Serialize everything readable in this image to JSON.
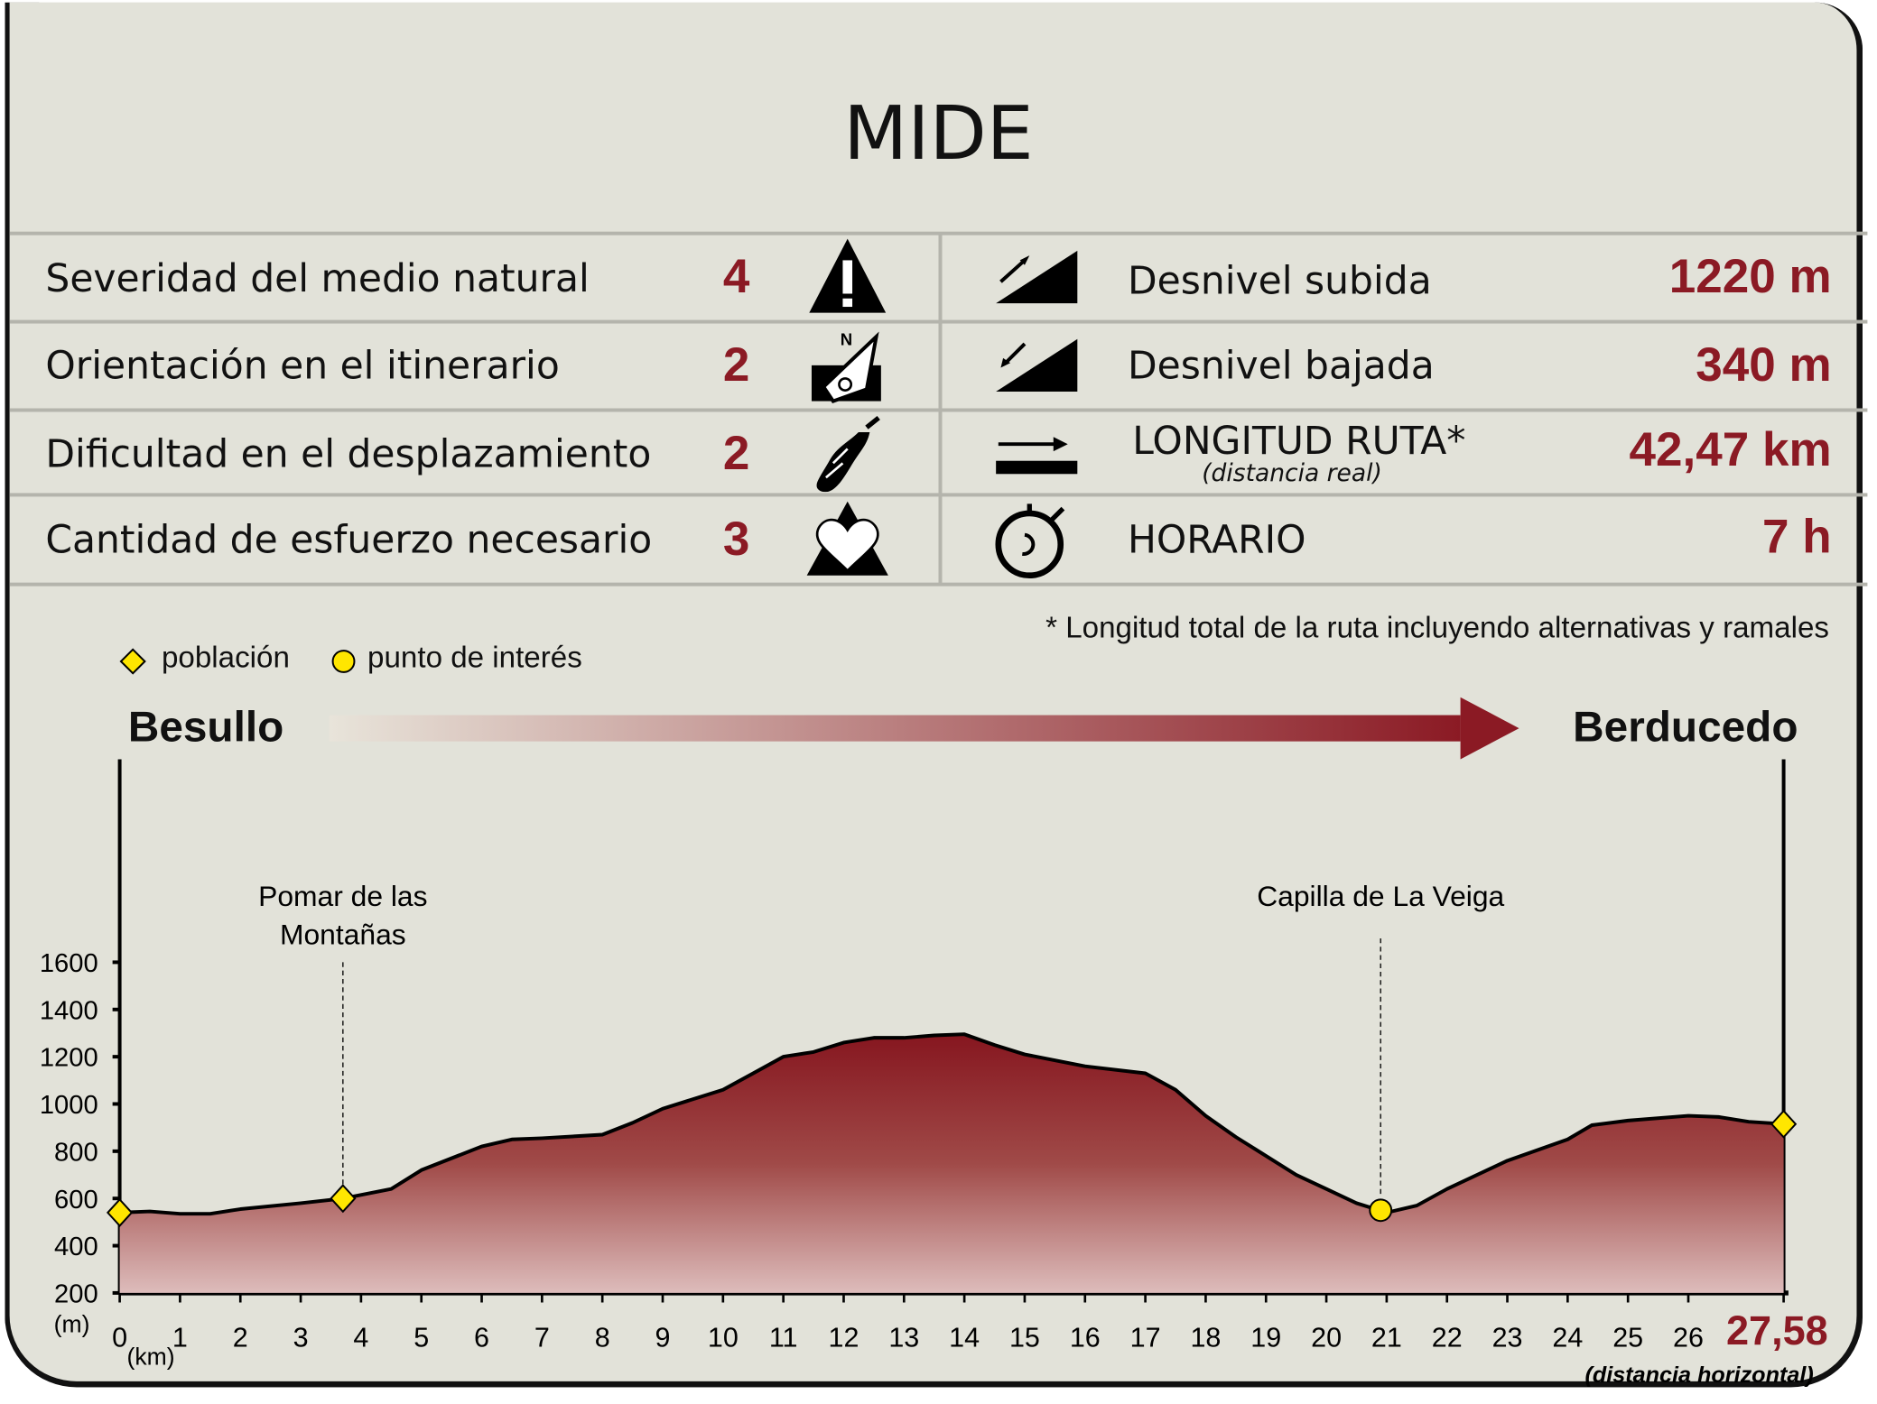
{
  "title": "MIDE",
  "mide": [
    {
      "label": "Severidad del medio natural",
      "value": "4",
      "icon": "warning-mountain-icon"
    },
    {
      "label": "Orientación en el itinerario",
      "value": "2",
      "icon": "compass-north-icon"
    },
    {
      "label": "Dificultad en el desplazamiento",
      "value": "2",
      "icon": "footprint-icon"
    },
    {
      "label": "Cantidad de esfuerzo necesario",
      "value": "3",
      "icon": "heart-mountain-icon"
    }
  ],
  "stats": [
    {
      "label": "Desnivel subida",
      "value": "1220 m",
      "icon": "ascent-icon"
    },
    {
      "label": "Desnivel bajada",
      "value": "340 m",
      "icon": "descent-icon"
    },
    {
      "label": "LONGITUD RUTA*",
      "sublabel": "(distancia real)",
      "value": "42,47 km",
      "icon": "distance-arrow-icon"
    },
    {
      "label": "HORARIO",
      "value": "7 h",
      "icon": "stopwatch-icon"
    }
  ],
  "note": "* Longitud total de la ruta incluyendo alternativas y ramales",
  "legend": {
    "poblacion": "población",
    "punto": "punto de interés"
  },
  "route": {
    "start": "Besullo",
    "end": "Berducedo"
  },
  "colors": {
    "accent": "#8b1a24",
    "background": "#e2e2d9",
    "marker": "#ffe600"
  },
  "chart_data": {
    "type": "area",
    "ylabel": "(m)",
    "xlabel": "(km)",
    "x_end_label": "27,58",
    "x_note": "(distancia horizontal)",
    "ylim": [
      200,
      1600
    ],
    "xlim": [
      0,
      27.58
    ],
    "yticks": [
      200,
      400,
      600,
      800,
      1000,
      1200,
      1400,
      1600
    ],
    "xticks": [
      0,
      1,
      2,
      3,
      4,
      5,
      6,
      7,
      8,
      9,
      10,
      11,
      12,
      13,
      14,
      15,
      16,
      17,
      18,
      19,
      20,
      21,
      22,
      23,
      24,
      25,
      26
    ],
    "x": [
      0,
      0.5,
      1,
      1.5,
      2,
      3,
      3.7,
      4.5,
      5,
      6,
      6.5,
      7,
      8,
      8.5,
      9,
      10,
      10.5,
      11,
      11.5,
      12,
      12.5,
      13,
      13.5,
      14,
      14.5,
      15,
      16,
      17,
      17.5,
      18,
      18.5,
      19,
      19.5,
      20,
      20.5,
      21,
      21.5,
      22,
      23,
      24,
      24.4,
      25,
      26,
      26.5,
      27,
      27.58
    ],
    "y": [
      540,
      545,
      535,
      535,
      555,
      580,
      600,
      640,
      720,
      820,
      850,
      855,
      870,
      920,
      980,
      1060,
      1130,
      1200,
      1220,
      1260,
      1280,
      1280,
      1290,
      1295,
      1250,
      1210,
      1160,
      1130,
      1060,
      950,
      860,
      780,
      700,
      640,
      580,
      540,
      570,
      640,
      760,
      850,
      910,
      930,
      950,
      945,
      925,
      915
    ],
    "points": [
      {
        "km": 0,
        "elev": 540,
        "type": "población",
        "name": ""
      },
      {
        "km": 3.7,
        "elev": 600,
        "type": "población",
        "name": "Pomar de las Montañas"
      },
      {
        "km": 20.9,
        "elev": 550,
        "type": "punto de interés",
        "name": "Capilla de La Veiga"
      },
      {
        "km": 27.58,
        "elev": 915,
        "type": "población",
        "name": ""
      }
    ]
  }
}
